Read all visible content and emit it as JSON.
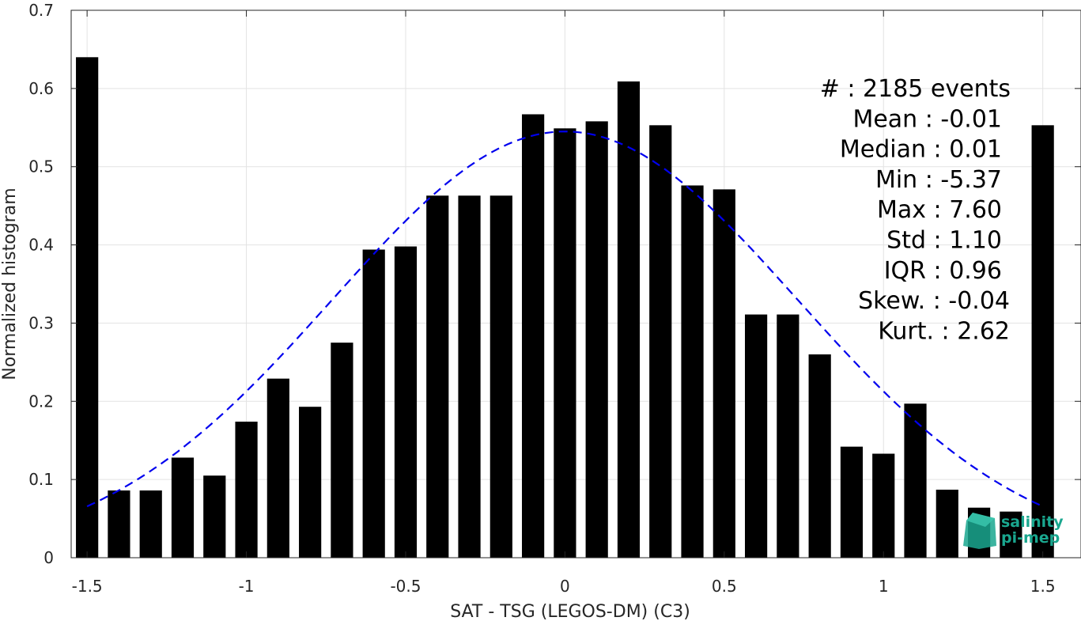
{
  "chart_data": {
    "type": "bar",
    "xlabel": "SAT - TSG (LEGOS-DM) (C3)",
    "ylabel": "Normalized histogram",
    "xlim": [
      -1.55,
      1.62
    ],
    "ylim": [
      0,
      0.7
    ],
    "grid": true,
    "x_ticks": [
      -1.5,
      -1,
      -0.5,
      0,
      0.5,
      1,
      1.5
    ],
    "x_tick_labels": [
      "-1.5",
      "-1",
      "-0.5",
      "0",
      "0.5",
      "1",
      "1.5"
    ],
    "y_ticks": [
      0,
      0.1,
      0.2,
      0.3,
      0.4,
      0.5,
      0.6,
      0.7
    ],
    "y_tick_labels": [
      "0",
      "0.1",
      "0.2",
      "0.3",
      "0.4",
      "0.5",
      "0.6",
      "0.7"
    ],
    "bar_color": "#000000",
    "bar_width": 0.07,
    "bars": {
      "x": [
        -1.5,
        -1.4,
        -1.3,
        -1.2,
        -1.1,
        -1.0,
        -0.9,
        -0.8,
        -0.7,
        -0.6,
        -0.5,
        -0.4,
        -0.3,
        -0.2,
        -0.1,
        0.0,
        0.1,
        0.2,
        0.3,
        0.4,
        0.5,
        0.6,
        0.7,
        0.8,
        0.9,
        1.0,
        1.1,
        1.2,
        1.3,
        1.4,
        1.5
      ],
      "values": [
        0.64,
        0.086,
        0.086,
        0.128,
        0.105,
        0.174,
        0.229,
        0.193,
        0.275,
        0.394,
        0.398,
        0.463,
        0.463,
        0.463,
        0.567,
        0.549,
        0.558,
        0.609,
        0.553,
        0.476,
        0.471,
        0.311,
        0.311,
        0.26,
        0.142,
        0.133,
        0.197,
        0.087,
        0.064,
        0.059,
        0.553
      ]
    },
    "fit_curve": {
      "style": "dashed",
      "color": "#0000ee",
      "mean": 0.0,
      "std": 0.729,
      "peak": 0.545,
      "x_range": [
        -1.5,
        1.5
      ]
    },
    "stats": [
      {
        "label": "#  ",
        "value": ": 2185 events"
      },
      {
        "label": "Mean ",
        "value": ": -0.01"
      },
      {
        "label": "Median ",
        "value": ": 0.01"
      },
      {
        "label": "Min ",
        "value": ": -5.37"
      },
      {
        "label": "Max ",
        "value": ": 7.60"
      },
      {
        "label": "Std ",
        "value": ": 1.10"
      },
      {
        "label": "IQR ",
        "value": ": 0.96"
      },
      {
        "label": "Skew. ",
        "value": ": -0.04"
      },
      {
        "label": "Kurt. ",
        "value": ": 2.62"
      }
    ]
  },
  "logo": {
    "line1": "salinity",
    "line2": "pi-mep",
    "color": "#1aa78f"
  }
}
